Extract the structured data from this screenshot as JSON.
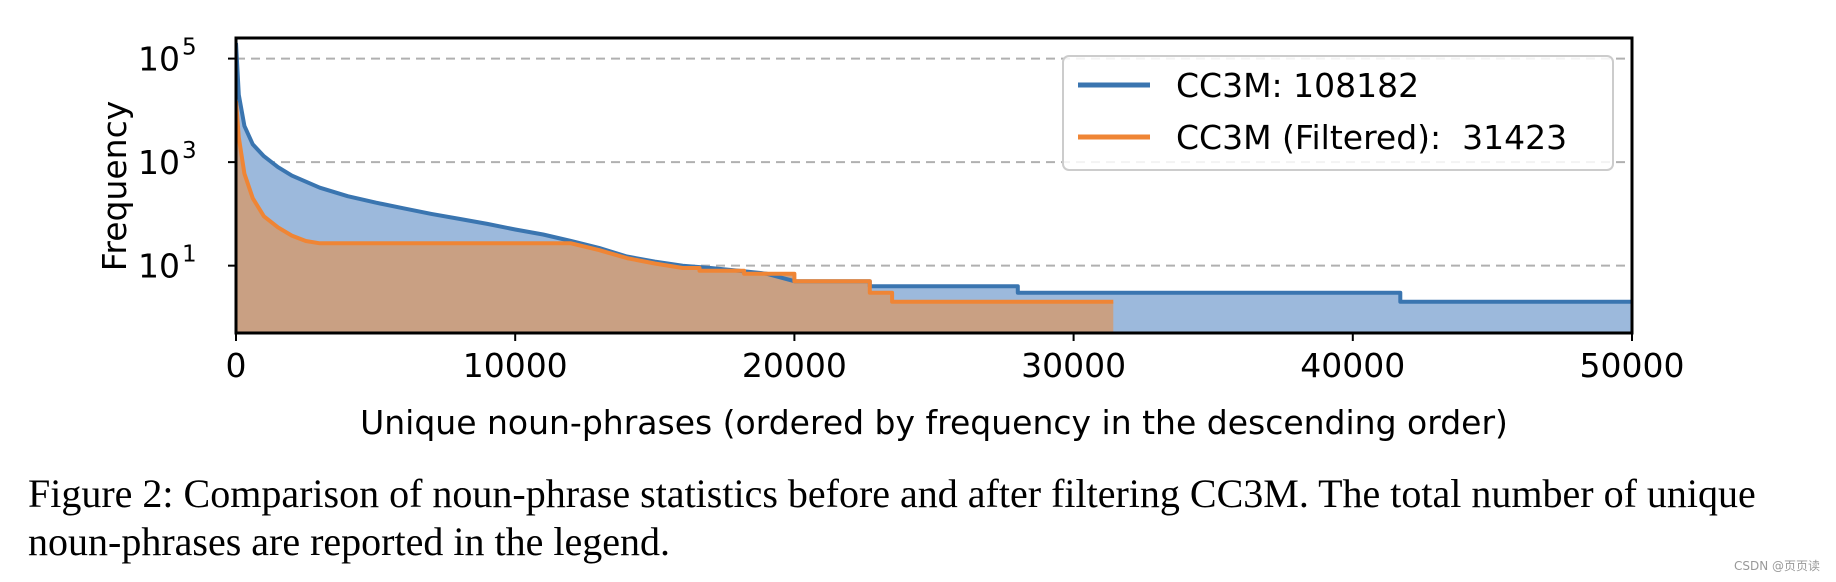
{
  "chart_data": {
    "type": "area",
    "title": "",
    "xlabel": "Unique noun-phrases (ordered by frequency in the descending order)",
    "ylabel": "Frequency",
    "xlim": [
      0,
      50000
    ],
    "ylim": [
      0.5,
      250000
    ],
    "yscale": "log",
    "x_ticks": [
      0,
      10000,
      20000,
      30000,
      40000,
      50000
    ],
    "y_ticks": [
      {
        "value": 10,
        "base": "10",
        "exp": "1"
      },
      {
        "value": 1000,
        "base": "10",
        "exp": "3"
      },
      {
        "value": 100000,
        "base": "10",
        "exp": "5"
      }
    ],
    "grid": "horizontal dashed at major y ticks",
    "legend_position": "top-right",
    "series": [
      {
        "name": "CC3M: 108182",
        "color": "#3a75b0",
        "fill": "#9cb9dc",
        "points": [
          [
            0,
            200000
          ],
          [
            100,
            20000
          ],
          [
            300,
            5000
          ],
          [
            600,
            2200
          ],
          [
            1000,
            1300
          ],
          [
            1500,
            800
          ],
          [
            2000,
            550
          ],
          [
            3000,
            320
          ],
          [
            4000,
            220
          ],
          [
            5000,
            165
          ],
          [
            6000,
            128
          ],
          [
            7000,
            100
          ],
          [
            8000,
            80
          ],
          [
            9000,
            64
          ],
          [
            10000,
            50
          ],
          [
            11000,
            40
          ],
          [
            12000,
            30
          ],
          [
            13000,
            22
          ],
          [
            14000,
            15
          ],
          [
            15000,
            12
          ],
          [
            16000,
            10
          ],
          [
            17000,
            9
          ],
          [
            18000,
            8
          ],
          [
            19000,
            7
          ],
          [
            20000,
            5
          ],
          [
            21000,
            5
          ],
          [
            22700,
            5
          ],
          [
            22700,
            4
          ],
          [
            28000,
            4
          ],
          [
            28000,
            3
          ],
          [
            41700,
            3
          ],
          [
            41700,
            2
          ],
          [
            50000,
            2
          ]
        ]
      },
      {
        "name": "CC3M (Filtered):  31423",
        "color": "#ef8535",
        "fill": "#c9a083",
        "points": [
          [
            0,
            15000
          ],
          [
            100,
            3000
          ],
          [
            300,
            600
          ],
          [
            600,
            200
          ],
          [
            1000,
            90
          ],
          [
            1500,
            55
          ],
          [
            2000,
            38
          ],
          [
            2500,
            30
          ],
          [
            3000,
            27
          ],
          [
            4000,
            27
          ],
          [
            12000,
            27
          ],
          [
            13000,
            20
          ],
          [
            14000,
            14
          ],
          [
            15000,
            11
          ],
          [
            16000,
            9
          ],
          [
            16600,
            9
          ],
          [
            16600,
            8
          ],
          [
            18200,
            8
          ],
          [
            18200,
            7
          ],
          [
            20000,
            7
          ],
          [
            20000,
            5
          ],
          [
            22700,
            5
          ],
          [
            22700,
            3
          ],
          [
            23500,
            3
          ],
          [
            23500,
            2
          ],
          [
            31423,
            2
          ]
        ]
      }
    ]
  },
  "caption": "Figure 2: Comparison of noun-phrase statistics before and after filtering CC3M. The total number of unique noun-phrases are reported in the legend.",
  "watermark": "CSDN @页页读"
}
